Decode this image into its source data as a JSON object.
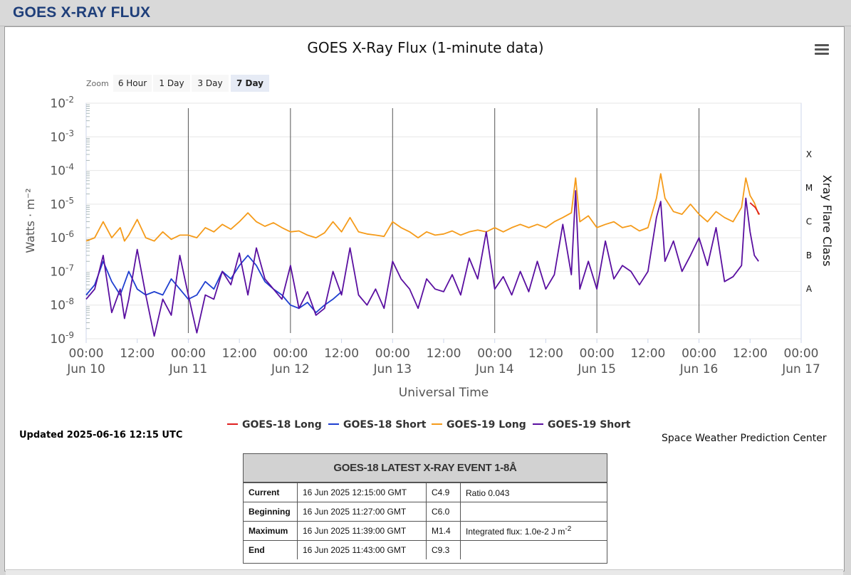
{
  "header": {
    "title": "GOES X-RAY FLUX"
  },
  "toolbar": {
    "zoom_label": "Zoom",
    "zoom_buttons": [
      "6 Hour",
      "1 Day",
      "3 Day",
      "7 Day"
    ],
    "active_zoom": "7 Day"
  },
  "chart_data": {
    "type": "line",
    "title": "GOES X-Ray Flux (1-minute data)",
    "xlabel": "Universal Time",
    "ylabel": "Watts · m⁻²",
    "y2label": "Xray Flare Class",
    "yscale": "log",
    "ylim": [
      1e-09,
      0.01
    ],
    "xlim": [
      "2025-06-10 00:00",
      "2025-06-17 00:00"
    ],
    "y_ticks": [
      {
        "base": "10",
        "exp": "-2"
      },
      {
        "base": "10",
        "exp": "-3"
      },
      {
        "base": "10",
        "exp": "-4"
      },
      {
        "base": "10",
        "exp": "-5"
      },
      {
        "base": "10",
        "exp": "-6"
      },
      {
        "base": "10",
        "exp": "-7"
      },
      {
        "base": "10",
        "exp": "-8"
      },
      {
        "base": "10",
        "exp": "-9"
      }
    ],
    "x_ticks": [
      {
        "time": "00:00",
        "date": "Jun 10"
      },
      {
        "time": "12:00",
        "date": ""
      },
      {
        "time": "00:00",
        "date": "Jun 11"
      },
      {
        "time": "12:00",
        "date": ""
      },
      {
        "time": "00:00",
        "date": "Jun 12"
      },
      {
        "time": "12:00",
        "date": ""
      },
      {
        "time": "00:00",
        "date": "Jun 13"
      },
      {
        "time": "12:00",
        "date": ""
      },
      {
        "time": "00:00",
        "date": "Jun 14"
      },
      {
        "time": "12:00",
        "date": ""
      },
      {
        "time": "00:00",
        "date": "Jun 15"
      },
      {
        "time": "12:00",
        "date": ""
      },
      {
        "time": "00:00",
        "date": "Jun 16"
      },
      {
        "time": "12:00",
        "date": ""
      },
      {
        "time": "00:00",
        "date": "Jun 17"
      }
    ],
    "flare_classes": [
      {
        "label": "X",
        "level": 0.0001
      },
      {
        "label": "M",
        "level": 1e-05
      },
      {
        "label": "C",
        "level": 1e-06
      },
      {
        "label": "B",
        "level": 1e-07
      },
      {
        "label": "A",
        "level": 1e-08
      }
    ],
    "x_units": "hours since Jun 10 00:00 UTC",
    "series": [
      {
        "name": "GOES-18 Long",
        "color": "#e02020",
        "x": [
          156.0,
          157.2,
          158.2
        ],
        "y": [
          1.1e-05,
          8e-06,
          4.9e-06
        ]
      },
      {
        "name": "GOES-18 Short",
        "color": "#1f3fd0",
        "x": [
          0,
          2,
          4,
          6,
          8,
          10,
          12,
          14,
          16,
          18,
          20,
          22,
          24,
          26,
          28,
          30,
          32,
          34,
          36,
          38,
          40,
          42,
          44,
          46,
          48,
          50,
          52,
          54,
          56,
          58,
          60
        ],
        "y": [
          2e-08,
          4e-08,
          2e-07,
          5e-08,
          2e-08,
          1e-07,
          3e-08,
          2e-08,
          2.5e-08,
          2e-08,
          6e-08,
          3e-08,
          1.5e-08,
          2e-08,
          5e-08,
          3e-08,
          1e-07,
          6e-08,
          1.5e-07,
          3e-07,
          1.5e-07,
          5e-08,
          3e-08,
          2e-08,
          1e-08,
          8e-09,
          1.2e-08,
          6e-09,
          1e-08,
          1.5e-08,
          2.5e-08
        ]
      },
      {
        "name": "GOES-19 Long",
        "color": "#f59b1a",
        "x": [
          0,
          2,
          4,
          6,
          8,
          9,
          10,
          12,
          14,
          16,
          18,
          20,
          22,
          24,
          26,
          28,
          30,
          32,
          34,
          36,
          38,
          40,
          42,
          44,
          46,
          48,
          50,
          52,
          54,
          56,
          58,
          60,
          62,
          64,
          66,
          68,
          70,
          72,
          74,
          76,
          78,
          80,
          82,
          84,
          86,
          88,
          90,
          92,
          94,
          96,
          98,
          100,
          102,
          104,
          106,
          108,
          110,
          112,
          114,
          115,
          116,
          118,
          120,
          122,
          124,
          126,
          128,
          130,
          132,
          134,
          135,
          136,
          138,
          140,
          142,
          144,
          146,
          148,
          150,
          152,
          154,
          155,
          156,
          157,
          158
        ],
        "y": [
          8e-07,
          1e-06,
          3e-06,
          1e-06,
          2e-06,
          8e-07,
          1.2e-06,
          3.5e-06,
          1e-06,
          8e-07,
          1.5e-06,
          9e-07,
          1.2e-06,
          1.2e-06,
          1e-06,
          2e-06,
          1.5e-06,
          2.5e-06,
          1.8e-06,
          3e-06,
          5.5e-06,
          3e-06,
          2.2e-06,
          2.8e-06,
          2e-06,
          1.5e-06,
          1.6e-06,
          1.2e-06,
          1e-06,
          1.4e-06,
          3e-06,
          1.5e-06,
          4e-06,
          1.5e-06,
          1.3e-06,
          1.2e-06,
          1.1e-06,
          3e-06,
          2e-06,
          1.5e-06,
          1e-06,
          1.5e-06,
          1.2e-06,
          1.3e-06,
          1.6e-06,
          1.2e-06,
          1.5e-06,
          1.7e-06,
          1.5e-06,
          2e-06,
          1.5e-06,
          2e-06,
          2.5e-06,
          2e-06,
          2.5e-06,
          2e-06,
          3e-06,
          4e-06,
          5.5e-06,
          6e-05,
          3e-06,
          4.5e-06,
          2e-06,
          2.5e-06,
          3e-06,
          2e-06,
          2.3e-06,
          1.6e-06,
          2e-06,
          1.5e-05,
          8e-05,
          1.5e-05,
          6e-06,
          5e-06,
          1e-05,
          5e-06,
          3e-06,
          6e-06,
          4e-06,
          3e-06,
          8e-06,
          6e-05,
          1.8e-05,
          1.1e-05,
          4.9e-06
        ]
      },
      {
        "name": "GOES-19 Short",
        "color": "#5a0fa0",
        "x": [
          0,
          2,
          4,
          6,
          8,
          9,
          10,
          12,
          14,
          16,
          18,
          20,
          22,
          24,
          26,
          28,
          30,
          32,
          34,
          36,
          38,
          40,
          42,
          44,
          46,
          48,
          50,
          52,
          54,
          56,
          58,
          60,
          62,
          64,
          66,
          68,
          70,
          72,
          74,
          76,
          78,
          80,
          82,
          84,
          86,
          88,
          90,
          92,
          94,
          96,
          98,
          100,
          102,
          104,
          106,
          108,
          110,
          112,
          114,
          115,
          116,
          118,
          120,
          122,
          124,
          126,
          128,
          130,
          132,
          134,
          135,
          136,
          138,
          140,
          142,
          144,
          146,
          148,
          150,
          152,
          154,
          155,
          156,
          157,
          158
        ],
        "y": [
          1.5e-08,
          3e-08,
          3e-07,
          6e-09,
          3e-08,
          4e-09,
          1.5e-08,
          4.5e-07,
          2e-08,
          1.2e-09,
          1.5e-08,
          5e-09,
          3e-07,
          2e-08,
          1.5e-09,
          2e-08,
          1.5e-08,
          1e-07,
          4e-08,
          3.5e-07,
          2e-08,
          5e-07,
          6e-08,
          3e-08,
          1.5e-08,
          1.5e-07,
          8e-09,
          2.5e-08,
          5e-09,
          8e-09,
          1e-07,
          2e-08,
          5e-07,
          2e-08,
          1e-08,
          3e-08,
          8e-09,
          2e-07,
          6e-08,
          3e-08,
          8e-09,
          6e-08,
          3e-08,
          2.5e-08,
          8e-08,
          2e-08,
          2.5e-07,
          6e-08,
          1.5e-06,
          3e-08,
          7e-08,
          2e-08,
          1e-07,
          2.5e-08,
          2e-07,
          3e-08,
          8e-08,
          2.5e-06,
          8e-08,
          2.5e-05,
          3e-08,
          2e-07,
          3e-08,
          8e-07,
          6e-08,
          1.5e-07,
          1e-07,
          4e-08,
          1e-07,
          4e-06,
          1.2e-05,
          2e-07,
          8e-07,
          1e-07,
          3e-07,
          1e-06,
          1.5e-07,
          2e-06,
          5e-08,
          7e-08,
          1.5e-07,
          1.5e-05,
          1.5e-06,
          3e-07,
          2e-07
        ]
      }
    ]
  },
  "footer": {
    "updated": "Updated 2025-06-16 12:15 UTC",
    "credit": "Space Weather Prediction Center"
  },
  "event": {
    "title": "GOES-18 LATEST X-RAY EVENT 1-8Å",
    "rows": [
      {
        "label": "Current",
        "time": "16 Jun 2025 12:15:00 GMT",
        "cls": "C4.9",
        "extra": "Ratio 0.043",
        "extra_sup": ""
      },
      {
        "label": "Beginning",
        "time": "16 Jun 2025 11:27:00 GMT",
        "cls": "C6.0",
        "extra": "",
        "extra_sup": ""
      },
      {
        "label": "Maximum",
        "time": "16 Jun 2025 11:39:00 GMT",
        "cls": "M1.4",
        "extra": "Integrated flux: 1.0e-2 J m",
        "extra_sup": "-2"
      },
      {
        "label": "End",
        "time": "16 Jun 2025 11:43:00 GMT",
        "cls": "C9.3",
        "extra": "",
        "extra_sup": ""
      }
    ]
  }
}
